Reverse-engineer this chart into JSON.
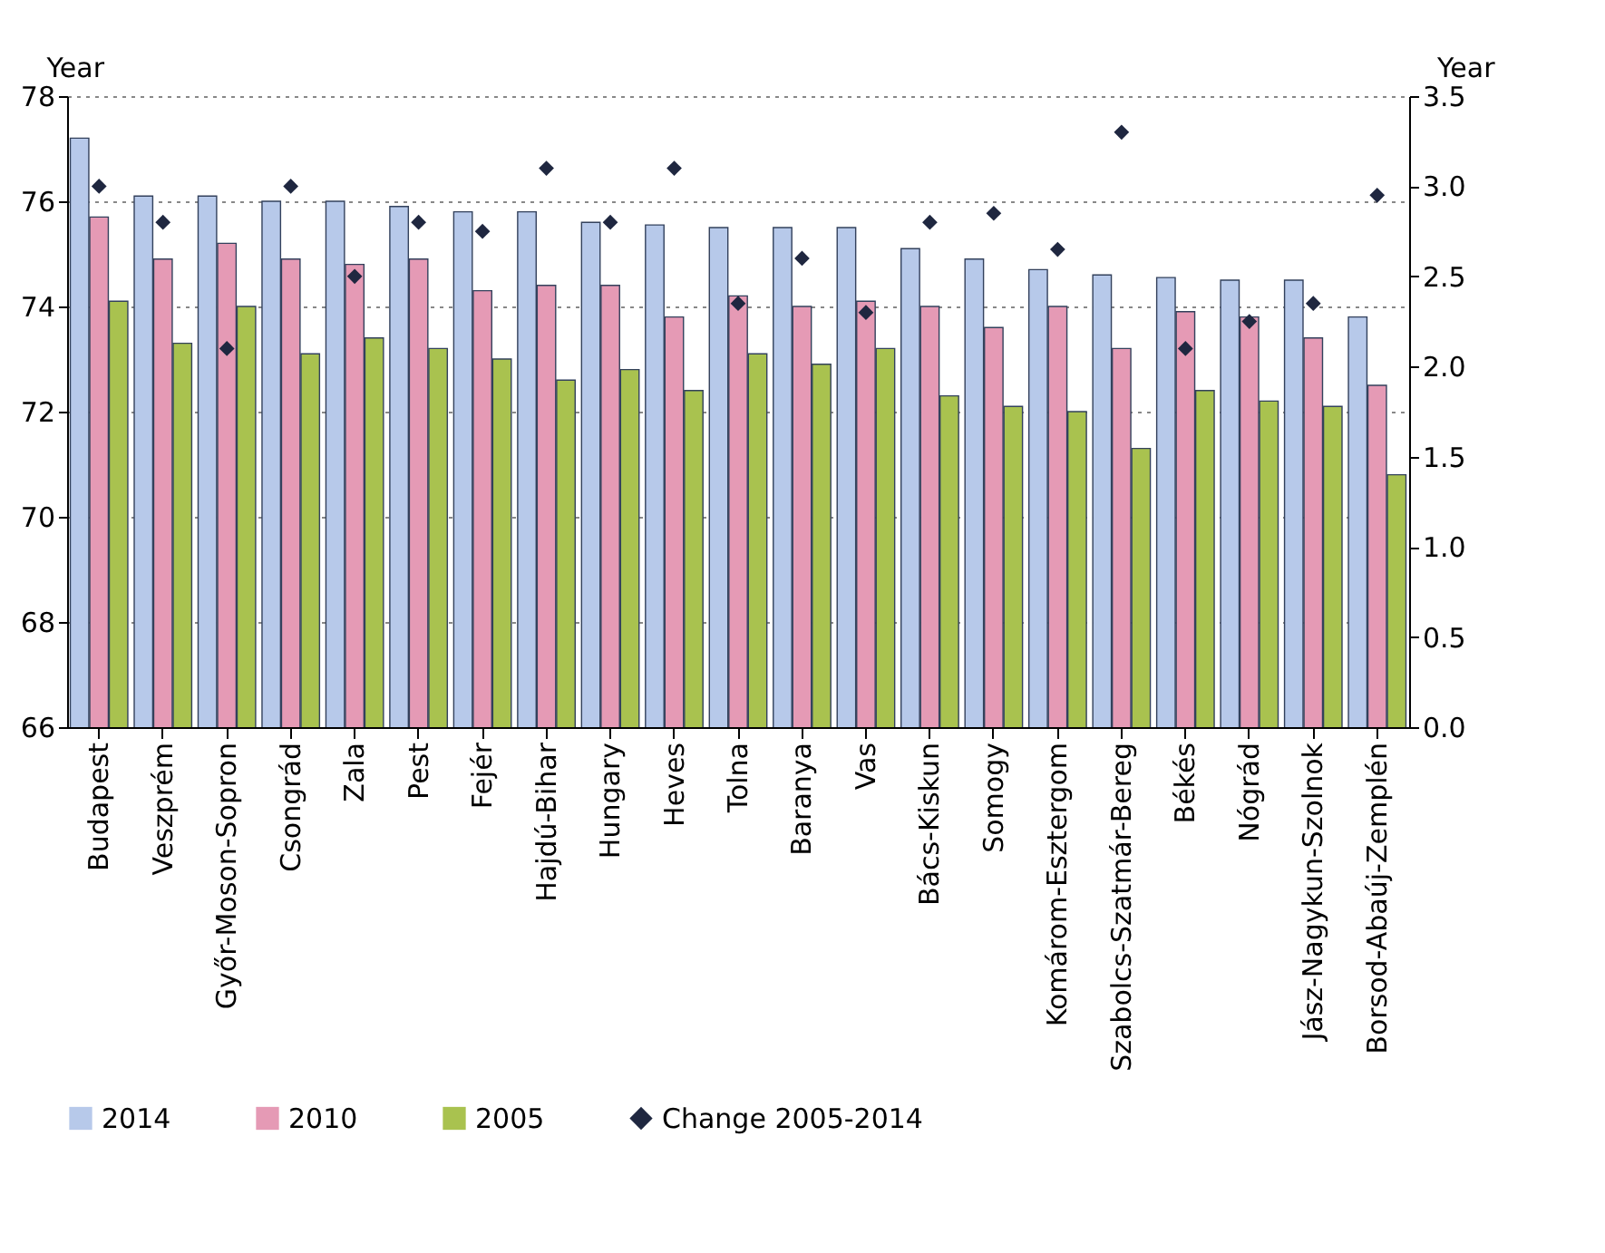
{
  "chart_data": {
    "type": "bar",
    "ylabel": "Year",
    "y2label": "Year",
    "categories": [
      "Budapest",
      "Veszprém",
      "Győr-Moson-Sopron",
      "Csongrád",
      "Zala",
      "Pest",
      "Fejér",
      "Hajdú-Bihar",
      "Hungary",
      "Heves",
      "Tolna",
      "Baranya",
      "Vas",
      "Bács-Kiskun",
      "Somogy",
      "Komárom-Esztergom",
      "Szabolcs-Szatmár-Bereg",
      "Békés",
      "Nógrád",
      "Jász-Nagykun-Szolnok",
      "Borsod-Abaúj-Zemplén"
    ],
    "series": [
      {
        "name": "2014",
        "color": "#b7c9ea",
        "values": [
          77.2,
          76.1,
          76.1,
          76.0,
          76.0,
          75.9,
          75.8,
          75.8,
          75.6,
          75.55,
          75.5,
          75.5,
          75.5,
          75.1,
          74.9,
          74.7,
          74.6,
          74.55,
          74.5,
          74.5,
          73.8
        ]
      },
      {
        "name": "2010",
        "color": "#e59ab5",
        "values": [
          75.7,
          74.9,
          75.2,
          74.9,
          74.8,
          74.9,
          74.3,
          74.4,
          74.4,
          73.8,
          74.2,
          74.0,
          74.1,
          74.0,
          73.6,
          74.0,
          73.2,
          73.9,
          73.8,
          73.4,
          72.5
        ]
      },
      {
        "name": "2005",
        "color": "#a9c24f",
        "values": [
          74.1,
          73.3,
          74.0,
          73.1,
          73.4,
          73.2,
          73.0,
          72.6,
          72.8,
          72.4,
          73.1,
          72.9,
          73.2,
          72.3,
          72.1,
          72.0,
          71.3,
          72.4,
          72.2,
          72.1,
          70.8
        ]
      },
      {
        "name": "Change 2005-2014",
        "type": "scatter",
        "axis": "y2",
        "color": "#1f2740",
        "values": [
          3.0,
          2.8,
          2.1,
          3.0,
          2.5,
          2.8,
          2.75,
          3.1,
          2.8,
          3.1,
          2.35,
          2.6,
          2.3,
          2.8,
          2.85,
          2.65,
          3.3,
          2.1,
          2.25,
          2.35,
          2.95
        ]
      }
    ],
    "ylim": [
      66,
      78
    ],
    "yticks": [
      66,
      68,
      70,
      72,
      74,
      76,
      78
    ],
    "y2lim": [
      0,
      3.5
    ],
    "y2ticks": [
      {
        "value": 0,
        "label": "0.0"
      },
      {
        "value": 0.5,
        "label": "0.5"
      },
      {
        "value": 1,
        "label": "1.0"
      },
      {
        "value": 1.5,
        "label": "1.5"
      },
      {
        "value": 2,
        "label": "2.0"
      },
      {
        "value": 2.5,
        "label": "2.5"
      },
      {
        "value": 3,
        "label": "3.0"
      },
      {
        "value": 3.5,
        "label": "3.5"
      }
    ],
    "grid": "y",
    "legend": "bottom",
    "marker": "diamond"
  }
}
